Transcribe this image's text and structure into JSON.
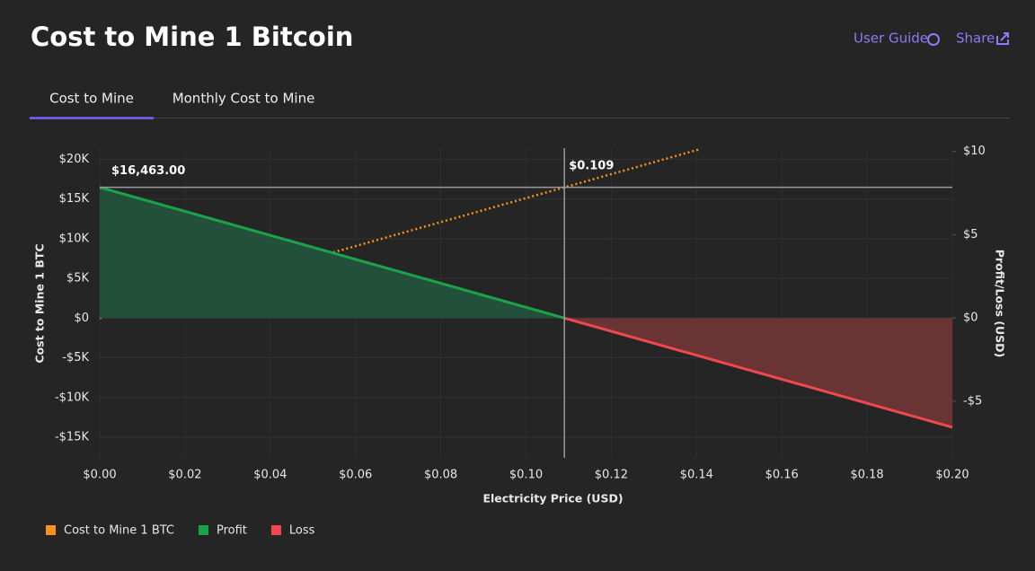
{
  "header": {
    "title": "Cost to Mine 1 Bitcoin",
    "links": [
      "User Guide",
      "Share"
    ]
  },
  "tabs": [
    "Cost to Mine",
    "Monthly Cost to Mine"
  ],
  "chart_data": {
    "type": "line",
    "xlabel": "Electricity Price (USD)",
    "ylabel": "Cost to Mine 1 BTC",
    "y2label": "Profit/Loss (USD)",
    "xlim": [
      0,
      0.2
    ],
    "xticks": [
      {
        "value": 0,
        "label": "$0.00"
      },
      {
        "value": 0.02,
        "label": "$0.02"
      },
      {
        "value": 0.04,
        "label": "$0.04"
      },
      {
        "value": 0.06,
        "label": "$0.06"
      },
      {
        "value": 0.08,
        "label": "$0.08"
      },
      {
        "value": 0.1,
        "label": "$0.10"
      },
      {
        "value": 0.12,
        "label": "$0.12"
      },
      {
        "value": 0.14,
        "label": "$0.14"
      },
      {
        "value": 0.16,
        "label": "$0.16"
      },
      {
        "value": 0.18,
        "label": "$0.18"
      },
      {
        "value": 0.2,
        "label": "$0.20"
      }
    ],
    "ylim": [
      -17600,
      21400
    ],
    "yticks": [
      {
        "value": -15000,
        "label": "-$15K"
      },
      {
        "value": -10000,
        "label": "-$10K"
      },
      {
        "value": -5000,
        "label": "-$5K"
      },
      {
        "value": 0,
        "label": "$0"
      },
      {
        "value": 5000,
        "label": "$5K"
      },
      {
        "value": 10000,
        "label": "$10K"
      },
      {
        "value": 15000,
        "label": "$15K"
      },
      {
        "value": 20000,
        "label": "$20K"
      }
    ],
    "y2lim": [
      -8.4,
      10.2
    ],
    "y2ticks": [
      {
        "value": -5,
        "label": "-$5"
      },
      {
        "value": 0,
        "label": "$0"
      },
      {
        "value": 5,
        "label": "$5"
      },
      {
        "value": 10,
        "label": "$10"
      }
    ],
    "grid": true,
    "series": [
      {
        "name": "Cost to Mine 1 BTC",
        "color": "#f7931a",
        "style": "dotted",
        "x": [
          0,
          0.141
        ],
        "values": [
          0,
          21300
        ]
      },
      {
        "name": "Profit",
        "color": "#1aa34a",
        "fill": "#22503a",
        "x": [
          0,
          0.109
        ],
        "values": [
          16463,
          0
        ]
      },
      {
        "name": "Loss",
        "color": "#f0484e",
        "fill": "#6a3334",
        "x": [
          0.109,
          0.2
        ],
        "values": [
          0,
          -13744
        ]
      }
    ],
    "annotations": [
      {
        "text": "$16,463.00",
        "y": 16463
      },
      {
        "text": "$0.109",
        "x": 0.109
      }
    ]
  }
}
